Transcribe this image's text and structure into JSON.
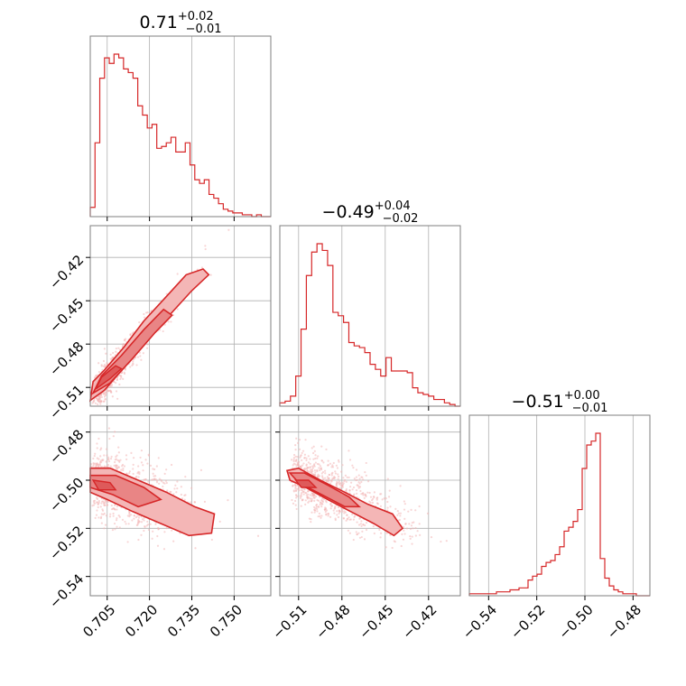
{
  "chart_data": {
    "type": "corner",
    "color": "#d62728",
    "parameters": [
      {
        "median": "0.71",
        "upper": "+0.02",
        "lower": "−0.01",
        "range": [
          0.699,
          0.763
        ]
      },
      {
        "median": "−0.49",
        "upper": "+0.04",
        "lower": "−0.02",
        "range": [
          -0.523,
          -0.398
        ]
      },
      {
        "median": "−0.51",
        "upper": "+0.00",
        "lower": "−0.01",
        "range": [
          -0.548,
          -0.473
        ]
      }
    ],
    "ticks": {
      "p0": {
        "values": [
          0.705,
          0.72,
          0.735,
          0.75
        ],
        "labels": [
          "0.705",
          "0.720",
          "0.735",
          "0.750"
        ]
      },
      "p1": {
        "values": [
          -0.51,
          -0.48,
          -0.45,
          -0.42
        ],
        "labels": [
          "−0.51",
          "−0.48",
          "−0.45",
          "−0.42"
        ]
      },
      "p2": {
        "values": [
          -0.54,
          -0.52,
          -0.5,
          -0.48
        ],
        "labels": [
          "−0.54",
          "−0.52",
          "−0.50",
          "−0.48"
        ]
      }
    },
    "histograms": {
      "p0": {
        "x_start": 0.699,
        "x_end": 0.763,
        "counts": [
          5,
          40,
          75,
          86,
          83,
          88,
          86,
          80,
          78,
          75,
          60,
          55,
          48,
          50,
          37,
          38,
          40,
          43,
          35,
          35,
          40,
          28,
          20,
          18,
          20,
          12,
          10,
          7,
          4,
          3,
          2,
          2,
          1,
          1,
          0,
          1,
          0,
          0
        ]
      },
      "p1": {
        "x_start": -0.523,
        "x_end": -0.398,
        "counts": [
          2,
          3,
          6,
          18,
          46,
          78,
          92,
          97,
          93,
          84,
          56,
          54,
          50,
          38,
          36,
          35,
          32,
          25,
          22,
          18,
          29,
          21,
          21,
          21,
          20,
          11,
          8,
          7,
          6,
          4,
          4,
          2,
          1,
          0
        ]
      },
      "p2": {
        "x_start": -0.548,
        "x_end": -0.473,
        "counts": [
          1,
          1,
          1,
          1,
          1,
          1,
          2,
          2,
          2,
          3,
          3,
          4,
          4,
          8,
          10,
          11,
          15,
          17,
          18,
          21,
          25,
          33,
          35,
          38,
          44,
          65,
          77,
          79,
          83,
          19,
          9,
          5,
          3,
          2,
          1,
          1,
          1,
          0,
          0,
          0
        ]
      }
    },
    "grid": true
  }
}
